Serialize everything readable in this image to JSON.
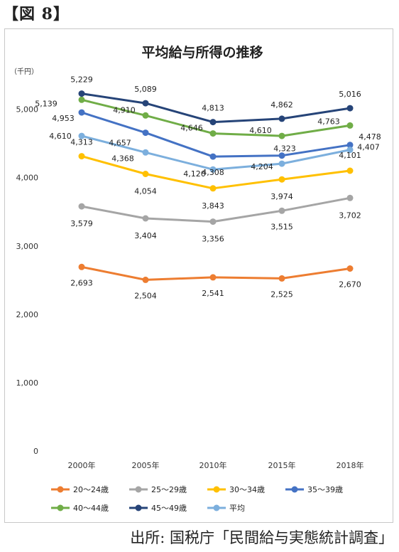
{
  "figure_label": "【図 8】",
  "source_text": "出所: 国税庁「民間給与実態統計調査」",
  "chart_data": {
    "type": "line",
    "title": "平均給与所得の推移",
    "ylabel": "（千円）",
    "xlabel": "",
    "categories": [
      "2000年",
      "2005年",
      "2010年",
      "2015年",
      "2018年"
    ],
    "ylim": [
      0,
      5000
    ],
    "yticks": [
      0,
      1000,
      2000,
      3000,
      4000,
      5000
    ],
    "ytick_labels": [
      "0",
      "1,000",
      "2,000",
      "3,000",
      "4,000",
      "5,000"
    ],
    "grid": false,
    "legend_position": "bottom",
    "series": [
      {
        "name": "20～24歳",
        "color": "#ED7D31",
        "values": [
          2693,
          2504,
          2541,
          2525,
          2670
        ],
        "labels": [
          "2,693",
          "2,504",
          "2,541",
          "2,525",
          "2,670"
        ]
      },
      {
        "name": "25～29歳",
        "color": "#A5A5A5",
        "values": [
          3579,
          3404,
          3356,
          3515,
          3702
        ],
        "labels": [
          "3,579",
          "3,404",
          "3,356",
          "3,515",
          "3,702"
        ]
      },
      {
        "name": "30～34歳",
        "color": "#FFC000",
        "values": [
          4313,
          4054,
          3843,
          3974,
          4101
        ],
        "labels": [
          "4,313",
          "4,054",
          "3,843",
          "3,974",
          "4,101"
        ]
      },
      {
        "name": "35～39歳",
        "color": "#4472C4",
        "values": [
          4953,
          4657,
          4308,
          4323,
          4478
        ],
        "labels": [
          "4,953",
          "4,657",
          "4,308",
          "4,323",
          "4,478"
        ]
      },
      {
        "name": "40～44歳",
        "color": "#70AD47",
        "values": [
          5139,
          4910,
          4646,
          4610,
          4763
        ],
        "labels": [
          "5,139",
          "4,910",
          "4,646",
          "4,610",
          "4,763"
        ]
      },
      {
        "name": "45～49歳",
        "color": "#264478",
        "values": [
          5229,
          5089,
          4813,
          4862,
          5016
        ],
        "labels": [
          "5,229",
          "5,089",
          "4,813",
          "4,862",
          "5,016"
        ]
      },
      {
        "name": "平均",
        "color": "#7CAFDD",
        "values": [
          4610,
          4368,
          4120,
          4204,
          4407
        ],
        "labels": [
          "4,610",
          "4,368",
          "4,120",
          "4,204",
          "4,407"
        ]
      }
    ]
  }
}
